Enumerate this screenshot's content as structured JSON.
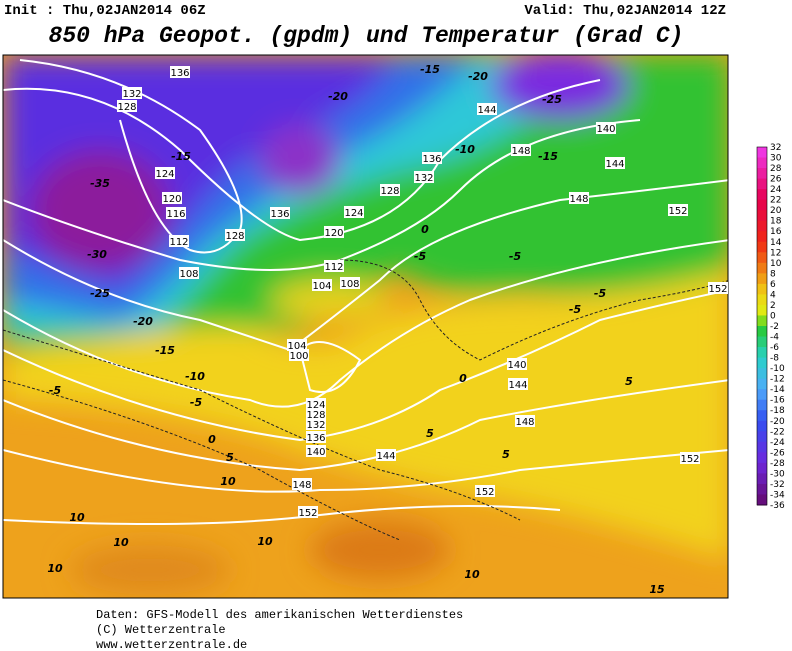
{
  "header": {
    "init": "Init : Thu,02JAN2014 06Z",
    "valid": "Valid: Thu,02JAN2014 12Z",
    "title": "850 hPa Geopot. (gpdm) und Temperatur (Grad C)"
  },
  "map": {
    "height_labels": [
      136,
      132,
      128,
      124,
      120,
      116,
      112,
      108,
      104,
      108,
      104,
      100,
      124,
      128,
      132,
      136,
      140,
      144,
      148,
      152,
      152,
      148,
      144,
      140,
      136,
      132,
      128,
      124,
      120,
      112,
      144,
      148,
      152,
      140,
      144,
      148,
      152,
      152,
      128,
      136
    ],
    "temperature_labels": [
      -35,
      -30,
      -25,
      -20,
      -15,
      -10,
      -5,
      0,
      5,
      10,
      10,
      10,
      10,
      -5,
      -5,
      -5,
      -5,
      -5,
      5,
      -15,
      -10,
      -20,
      -15,
      -25,
      -20,
      -15,
      0,
      0,
      5,
      5,
      10,
      10,
      15
    ]
  },
  "color_scale": {
    "labels": [
      32,
      30,
      28,
      26,
      24,
      22,
      20,
      18,
      16,
      14,
      12,
      10,
      8,
      6,
      4,
      2,
      0,
      -2,
      -4,
      -6,
      -8,
      -10,
      -12,
      -14,
      -16,
      -18,
      -20,
      -22,
      -24,
      -26,
      -28,
      -30,
      -32,
      -34,
      -36
    ]
  },
  "footer": {
    "lines": [
      "Daten: GFS-Modell des amerikanischen Wetterdienstes",
      "(C) Wetterzentrale",
      "www.wetterzentrale.de"
    ]
  }
}
